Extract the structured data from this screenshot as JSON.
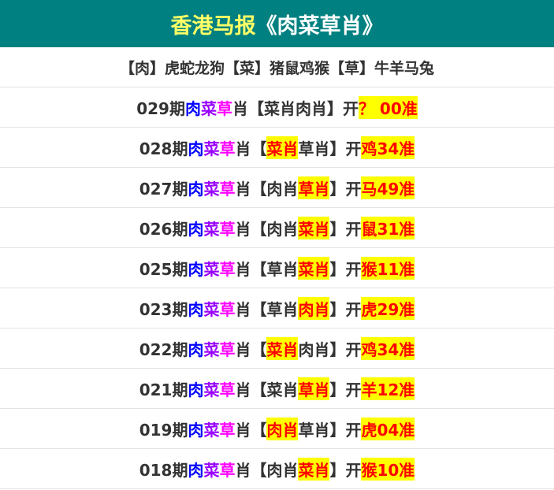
{
  "header": {
    "title_part1": "香港马报",
    "title_part2": "《肉菜草肖》"
  },
  "legend": "【肉】虎蛇龙狗【菜】猪鼠鸡猴【草】牛羊马兔",
  "labels": {
    "period_suffix": "期",
    "name_a": "肉",
    "name_b": "菜",
    "name_c": "草",
    "name_suffix": "肖",
    "open_bracket": "【",
    "close_bracket": "】",
    "open": "开",
    "accurate": "准"
  },
  "colors": {
    "header_bg": "#008080",
    "title_yellow": "#ffff66",
    "rou": "#0000ff",
    "cai": "#9900ff",
    "cao": "#ff00ff",
    "highlight_bg": "#ffff00",
    "highlight_text": "#ff0000"
  },
  "rows": [
    {
      "period": "029",
      "picks": [
        "菜肖",
        "肉肖"
      ],
      "hit": -1,
      "result": "？ 00"
    },
    {
      "period": "028",
      "picks": [
        "菜肖",
        "草肖"
      ],
      "hit": 0,
      "result": "鸡34"
    },
    {
      "period": "027",
      "picks": [
        "肉肖",
        "草肖"
      ],
      "hit": 1,
      "result": "马49"
    },
    {
      "period": "026",
      "picks": [
        "肉肖",
        "菜肖"
      ],
      "hit": 1,
      "result": "鼠31"
    },
    {
      "period": "025",
      "picks": [
        "草肖",
        "菜肖"
      ],
      "hit": 1,
      "result": "猴11"
    },
    {
      "period": "023",
      "picks": [
        "草肖",
        "肉肖"
      ],
      "hit": 1,
      "result": "虎29"
    },
    {
      "period": "022",
      "picks": [
        "菜肖",
        "肉肖"
      ],
      "hit": 0,
      "result": "鸡34"
    },
    {
      "period": "021",
      "picks": [
        "菜肖",
        "草肖"
      ],
      "hit": 1,
      "result": "羊12"
    },
    {
      "period": "019",
      "picks": [
        "肉肖",
        "草肖"
      ],
      "hit": 0,
      "result": "虎04"
    },
    {
      "period": "018",
      "picks": [
        "肉肖",
        "菜肖"
      ],
      "hit": 1,
      "result": "猴10"
    }
  ]
}
